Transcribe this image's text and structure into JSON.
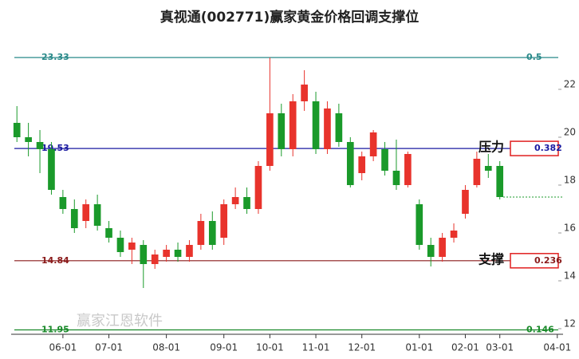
{
  "chart_data": {
    "type": "candlestick",
    "title": "真视通(002771)赢家黄金价格回调支撑位",
    "watermark": "赢家江恩软件",
    "categories": [
      null,
      null,
      null,
      null,
      "06-01",
      null,
      null,
      null,
      "07-01",
      null,
      null,
      null,
      null,
      "08-01",
      null,
      null,
      null,
      null,
      "09-01",
      null,
      null,
      null,
      "10-01",
      null,
      null,
      null,
      "11-01",
      null,
      null,
      null,
      "12-01",
      null,
      null,
      null,
      null,
      "01-01",
      null,
      null,
      null,
      "02-01",
      null,
      null,
      "03-01",
      null,
      null,
      null,
      null,
      "04-01"
    ],
    "open": [
      20.6,
      20.0,
      19.8,
      19.5,
      17.5,
      17.0,
      16.5,
      17.2,
      16.2,
      15.8,
      15.3,
      15.5,
      14.7,
      15.0,
      15.3,
      15.0,
      15.5,
      16.5,
      15.8,
      17.2,
      17.5,
      17.0,
      18.8,
      21.0,
      19.5,
      21.5,
      21.5,
      19.5,
      21.0,
      19.8,
      18.5,
      19.2,
      19.5,
      18.6,
      18.0,
      17.2,
      15.5,
      15.0,
      15.8,
      16.8,
      18.0,
      18.8,
      18.8,
      null,
      null,
      null,
      null,
      null
    ],
    "high": [
      21.3,
      20.6,
      20.3,
      19.8,
      17.8,
      17.4,
      17.4,
      17.6,
      16.5,
      16.1,
      15.8,
      15.7,
      15.3,
      15.5,
      15.6,
      15.7,
      16.8,
      16.9,
      17.4,
      17.9,
      17.9,
      19.0,
      23.33,
      21.4,
      21.8,
      22.8,
      21.9,
      21.5,
      21.4,
      20.0,
      19.4,
      20.3,
      19.8,
      19.9,
      19.4,
      17.4,
      15.8,
      16.0,
      16.4,
      18.0,
      19.4,
      19.3,
      19.0,
      null,
      null,
      null,
      null,
      null
    ],
    "low": [
      19.8,
      19.2,
      18.5,
      17.6,
      16.8,
      16.0,
      16.2,
      16.1,
      15.6,
      15.0,
      14.7,
      13.7,
      14.5,
      14.8,
      14.8,
      14.8,
      15.3,
      15.3,
      15.5,
      17.0,
      16.8,
      16.8,
      18.6,
      19.2,
      19.2,
      21.1,
      19.3,
      19.3,
      19.6,
      17.9,
      18.2,
      19.0,
      18.4,
      17.8,
      17.9,
      15.3,
      14.6,
      14.8,
      15.6,
      16.6,
      17.9,
      18.3,
      17.4,
      null,
      null,
      null,
      null,
      null
    ],
    "close": [
      20.0,
      19.8,
      19.5,
      17.8,
      17.0,
      16.2,
      17.2,
      16.3,
      15.8,
      15.2,
      15.6,
      14.7,
      15.1,
      15.3,
      15.0,
      15.5,
      16.5,
      15.5,
      17.2,
      17.5,
      17.0,
      18.8,
      21.0,
      19.5,
      21.5,
      22.2,
      19.5,
      21.2,
      19.8,
      18.0,
      19.2,
      20.2,
      18.6,
      18.0,
      19.3,
      15.5,
      15.0,
      15.8,
      16.1,
      17.8,
      19.1,
      18.6,
      17.5,
      null,
      null,
      null,
      null,
      null
    ],
    "up_color": "#e8332c",
    "down_color": "#1a9a2a",
    "ylim": [
      11.8,
      23.8
    ],
    "yticks": [
      12,
      14,
      16,
      18,
      20,
      22
    ],
    "levels": [
      {
        "price": 23.33,
        "ratio": 0.5,
        "color": "#2a8a8a"
      },
      {
        "price": 19.53,
        "ratio": 0.382,
        "color": "#1a1aa0",
        "label": "压力"
      },
      {
        "price": 14.84,
        "ratio": 0.236,
        "color": "#8a1a1a",
        "label": "支撑"
      },
      {
        "price": 11.95,
        "ratio": 0.146,
        "color": "#1a8a2a"
      }
    ]
  }
}
